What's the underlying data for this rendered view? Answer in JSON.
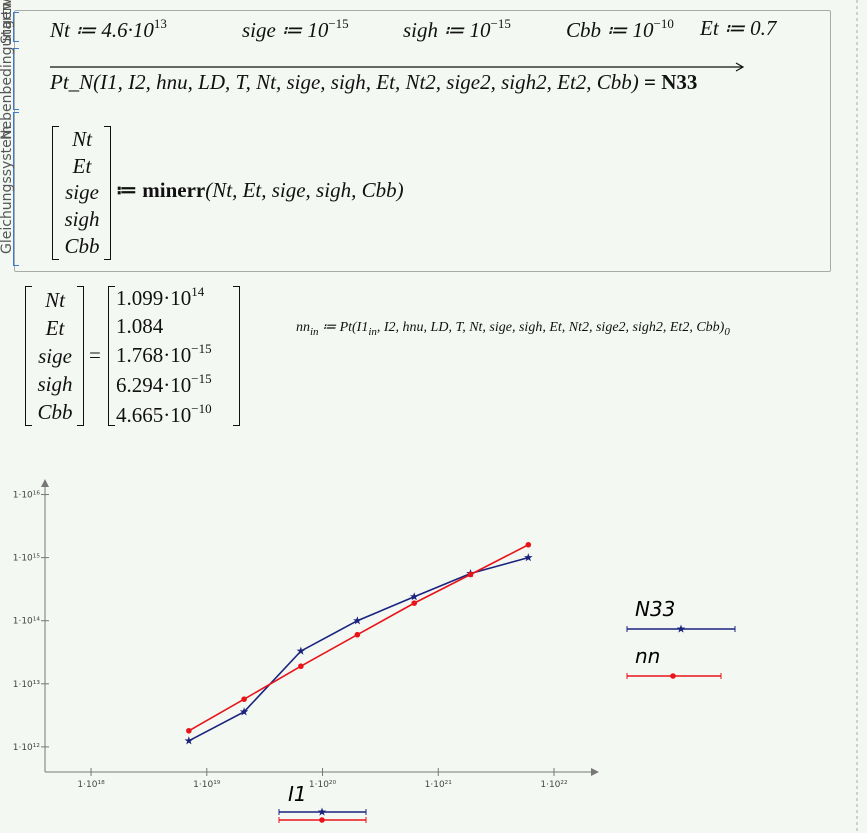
{
  "sidebar": [
    "Startwerte",
    "Nebenbedingungen",
    "Gleichungssystem"
  ],
  "definitions": [
    {
      "text": "Nt ≔ 4.6·10",
      "exponent": "13"
    },
    {
      "text": "sige ≔ 10",
      "exponent": "−15"
    },
    {
      "text": "sigh ≔ 10",
      "exponent": "−15"
    },
    {
      "text": "Cbb ≔ 10",
      "exponent": "−10"
    },
    {
      "text": "Et ≔ 0.7"
    }
  ],
  "constraint": {
    "call": "Pt_N(I1, I2, hnu, LD, T, Nt, sige, sigh, Et, Nt2, sige2, sigh2, Et2, Cbb)",
    "result": "= N33"
  },
  "solve": {
    "unknowns": [
      "Nt",
      "Et",
      "sige",
      "sigh",
      "Cbb"
    ],
    "call": "≔ minerr",
    "args": "(Nt, Et, sige, sigh, Cbb)"
  },
  "result": {
    "names": [
      "Nt",
      "Et",
      "sige",
      "sigh",
      "Cbb"
    ],
    "equals": "=",
    "values": [
      {
        "mantissa": "1.099·10",
        "exponent": "14"
      },
      {
        "mantissa": "1.084"
      },
      {
        "mantissa": "1.768·10",
        "exponent": "−15"
      },
      {
        "mantissa": "6.294·10",
        "exponent": "−15"
      },
      {
        "mantissa": "4.665·10",
        "exponent": "−10"
      }
    ]
  },
  "nn_definition": {
    "lhs": "nn",
    "lhs_index": "in",
    "assign": "≔ Pt(I1",
    "arg_index": "in",
    "rest": ", I2, hnu, LD, T, Nt, sige, sigh, Et, Nt2, sige2, sigh2, Et2, Cbb)",
    "result_index": "0"
  },
  "chart_data": {
    "type": "line",
    "x_label": "I1",
    "x": [
      7e+18,
      2.1e+19,
      6.5e+19,
      2e+20,
      6.2e+20,
      1.9e+21,
      6e+21
    ],
    "series": [
      {
        "name": "N33",
        "color": "#1a237e",
        "marker": "star",
        "values": [
          1250000000000.0,
          3600000000000.0,
          33000000000000.0,
          100000000000000.0,
          240000000000000.0,
          560000000000000.0,
          1000000000000000.0
        ]
      },
      {
        "name": "nn",
        "color": "#e8141a",
        "marker": "dot",
        "values": [
          1800000000000.0,
          5700000000000.0,
          19000000000000.0,
          60000000000000.0,
          190000000000000.0,
          540000000000000.0,
          1600000000000000.0
        ]
      }
    ],
    "xscale": "log",
    "yscale": "log",
    "xlim": [
      4e+17,
      2.4e+22
    ],
    "ylim": [
      400000000000.0,
      1.7e+16
    ],
    "xticks": [
      {
        "value": 1e+18,
        "label": "1·10¹⁸"
      },
      {
        "value": 1e+19,
        "label": "1·10¹⁹"
      },
      {
        "value": 1e+20,
        "label": "1·10²⁰"
      },
      {
        "value": 1e+21,
        "label": "1·10²¹"
      },
      {
        "value": 1e+22,
        "label": "1·10²²"
      }
    ],
    "yticks": [
      {
        "value": 1000000000000.0,
        "label": "1·10¹²"
      },
      {
        "value": 10000000000000.0,
        "label": "1·10¹³"
      },
      {
        "value": 100000000000000.0,
        "label": "1·10¹⁴"
      },
      {
        "value": 1000000000000000.0,
        "label": "1·10¹⁵"
      },
      {
        "value": 1e+16,
        "label": "1·10¹⁶"
      }
    ]
  }
}
